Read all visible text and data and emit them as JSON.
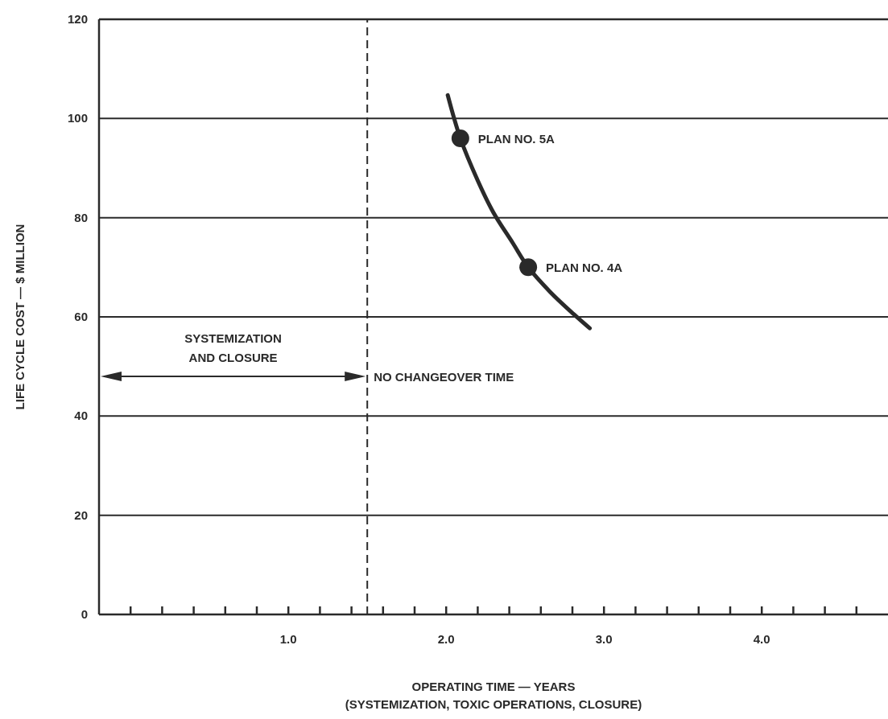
{
  "chart_data": {
    "type": "line",
    "xlabel": "OPERATING TIME — YEARS\n(SYSTEMIZATION, TOXIC OPERATIONS, CLOSURE)",
    "ylabel": "LIFE CYCLE COST — $ MILLION",
    "xlim": [
      -0.2,
      4.8
    ],
    "ylim": [
      0,
      120
    ],
    "yticks": [
      0,
      20,
      40,
      60,
      80,
      100,
      120
    ],
    "xticks": [
      {
        "value": 0,
        "label": null
      },
      {
        "value": 0.2,
        "label": null
      },
      {
        "value": 0.4,
        "label": null
      },
      {
        "value": 0.6,
        "label": null
      },
      {
        "value": 0.8,
        "label": null
      },
      {
        "value": 1.0,
        "label": "1.0"
      },
      {
        "value": 1.2,
        "label": null
      },
      {
        "value": 1.4,
        "label": null
      },
      {
        "value": 1.6,
        "label": null
      },
      {
        "value": 1.8,
        "label": null
      },
      {
        "value": 2.0,
        "label": "2.0"
      },
      {
        "value": 2.2,
        "label": null
      },
      {
        "value": 2.4,
        "label": null
      },
      {
        "value": 2.6,
        "label": null
      },
      {
        "value": 2.8,
        "label": null
      },
      {
        "value": 3.0,
        "label": "3.0"
      },
      {
        "value": 3.2,
        "label": null
      },
      {
        "value": 3.4,
        "label": null
      },
      {
        "value": 3.6,
        "label": null
      },
      {
        "value": 3.8,
        "label": null
      },
      {
        "value": 4.0,
        "label": "4.0"
      },
      {
        "value": 4.2,
        "label": null
      },
      {
        "value": 4.4,
        "label": null
      },
      {
        "value": 4.6,
        "label": null
      }
    ],
    "grid": "y",
    "series": [
      {
        "color": "#2a2a2a",
        "marker": "none",
        "x": [
          2.01,
          2.09,
          2.2,
          2.3,
          2.42,
          2.52,
          2.66,
          2.81,
          2.91
        ],
        "values": [
          104.7,
          96,
          87.5,
          81,
          75,
          70,
          65,
          60.5,
          57.7
        ]
      },
      {
        "type": "scatter",
        "color": "#2a2a2a",
        "marker": "circle",
        "x": [
          2.09,
          2.52
        ],
        "values": [
          96,
          70
        ]
      }
    ],
    "ref_lines": [
      {
        "axis": "x",
        "value": 1.5,
        "line_style": "dashed",
        "color": "#2a2a2a"
      }
    ],
    "annotations": [
      {
        "text": "PLAN NO. 5A",
        "x": 2.09,
        "y": 96
      },
      {
        "text": "PLAN NO. 4A",
        "x": 2.52,
        "y": 70
      },
      "SYSTEMIZATION\nAND CLOSURE",
      {
        "text": "NO CHANGEOVER TIME",
        "x": 1.5,
        "y": 48
      }
    ]
  }
}
